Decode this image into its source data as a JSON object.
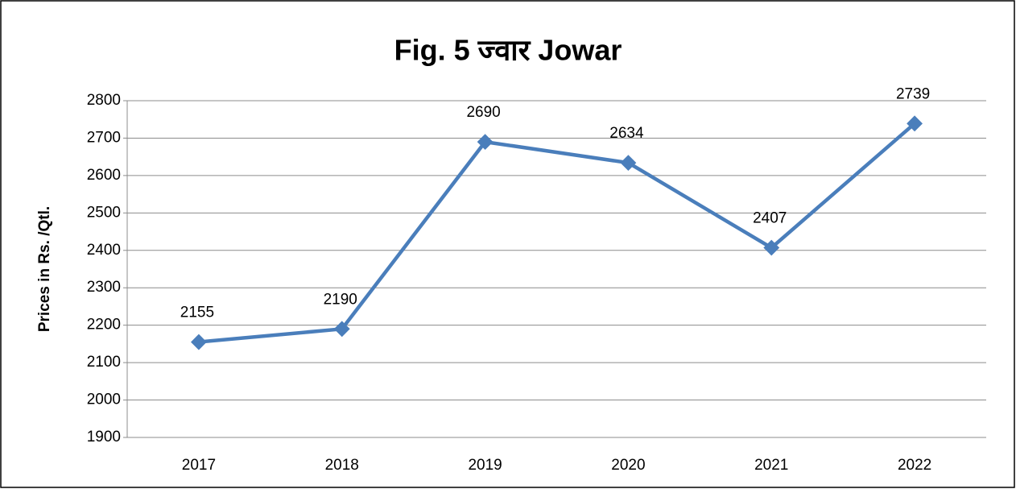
{
  "chart_data": {
    "type": "line",
    "title": "Fig. 5 ज्वार Jowar",
    "y_label": "Prices in Rs. /Qtl.",
    "categories": [
      "2017",
      "2018",
      "2019",
      "2020",
      "2021",
      "2022"
    ],
    "values": [
      2155,
      2190,
      2690,
      2634,
      2407,
      2739
    ],
    "color": "#4a7ebb",
    "ylim": [
      1900,
      2800
    ],
    "yticks": [
      1900,
      2000,
      2100,
      2200,
      2300,
      2400,
      2500,
      2600,
      2700,
      2800
    ],
    "grid": true
  }
}
